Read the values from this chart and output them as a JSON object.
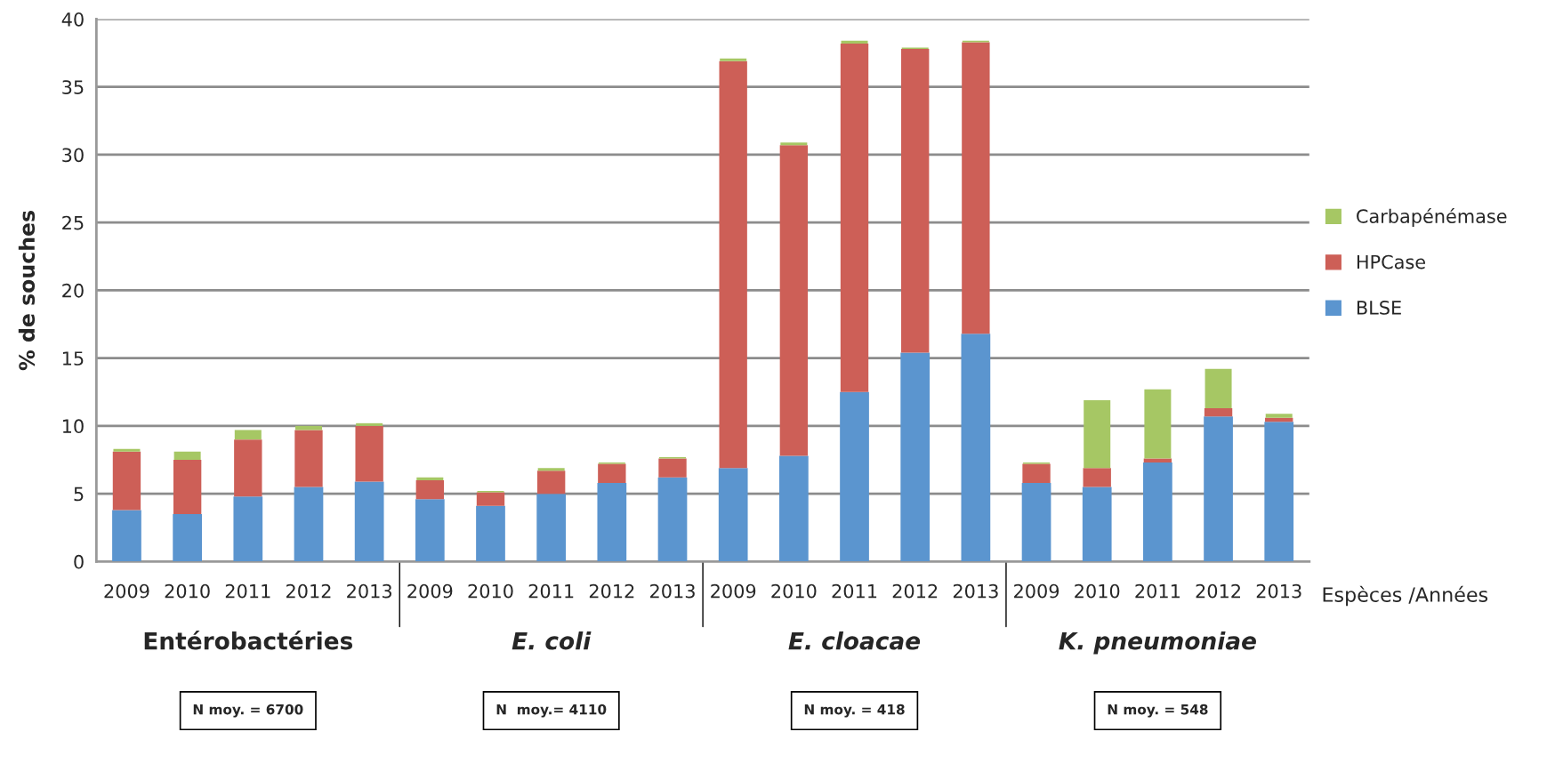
{
  "chart_data": {
    "type": "bar",
    "stacked": true,
    "ylabel": "% de souches",
    "xlabel": "Espèces /Années",
    "categories": [
      "2009",
      "2010",
      "2011",
      "2012",
      "2013",
      "2009",
      "2010",
      "2011",
      "2012",
      "2013",
      "2009",
      "2010",
      "2011",
      "2012",
      "2013",
      "2009",
      "2010",
      "2011",
      "2012",
      "2013"
    ],
    "series": [
      {
        "name": "BLSE",
        "color": "#5b95cf",
        "values": [
          3.8,
          3.5,
          4.8,
          5.5,
          5.9,
          4.6,
          4.1,
          5.0,
          5.8,
          6.2,
          6.9,
          7.8,
          12.5,
          15.4,
          16.8,
          5.8,
          5.5,
          7.3,
          10.7,
          10.3
        ]
      },
      {
        "name": "HPCase",
        "color": "#cd5f57",
        "values": [
          4.3,
          4.0,
          4.2,
          4.2,
          4.1,
          1.4,
          1.0,
          1.7,
          1.4,
          1.4,
          30.0,
          22.9,
          25.7,
          22.4,
          21.5,
          1.4,
          1.4,
          0.3,
          0.6,
          0.3
        ]
      },
      {
        "name": "Carbapénémase",
        "color": "#a6c764",
        "values": [
          0.2,
          0.6,
          0.7,
          0.3,
          0.2,
          0.2,
          0.1,
          0.2,
          0.1,
          0.1,
          0.2,
          0.2,
          0.2,
          0.1,
          0.1,
          0.1,
          5.0,
          5.1,
          2.9,
          0.3
        ]
      }
    ],
    "ylim": [
      0,
      40
    ],
    "yticks": [
      0,
      5,
      10,
      15,
      20,
      25,
      30,
      35,
      40
    ],
    "grid": "y",
    "legend": "right",
    "annotations": [
      "Entérobactéries",
      "E. coli",
      "E. cloacae",
      "K. pneumoniae",
      "N moy. = 6700",
      "N  moy.= 4110",
      "N moy. = 418",
      "N moy. = 548"
    ]
  }
}
